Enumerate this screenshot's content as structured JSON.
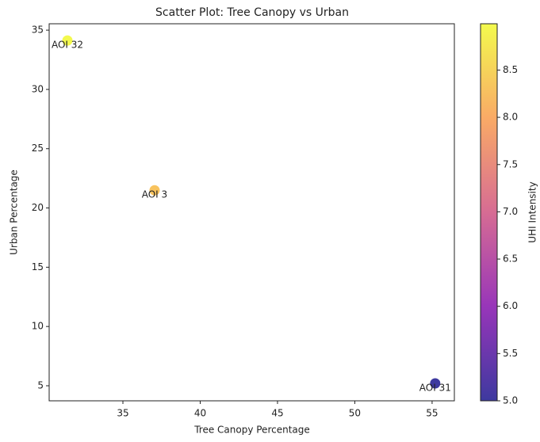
{
  "chart_data": {
    "type": "scatter",
    "title": "Scatter Plot: Tree Canopy vs Urban",
    "xlabel": "Tree Canopy Percentage",
    "ylabel": "Urban Percentage",
    "x": [
      31.41,
      37.05,
      55.2
    ],
    "values": [
      34.13,
      21.49,
      5.2
    ],
    "labels": [
      "AOI 32",
      "AOI 3",
      "AOI 31"
    ],
    "color_values": [
      8.97,
      8.3,
      5.0
    ],
    "colormap": "plasma",
    "alpha": 0.8,
    "xlim": [
      30.23,
      56.44
    ],
    "xticks": [
      35,
      40,
      45,
      50,
      55
    ],
    "ylim": [
      3.73,
      35.54
    ],
    "yticks": [
      5,
      10,
      15,
      20,
      25,
      30,
      35
    ],
    "colorbar_label": "UHI Intensity",
    "clim": [
      5.0,
      8.99
    ],
    "cticks": [
      {
        "value": 5,
        "label": "5.0"
      },
      5.5,
      {
        "value": 6,
        "label": "6.0"
      },
      6.5,
      {
        "value": 7,
        "label": "7.0"
      },
      7.5,
      {
        "value": 8,
        "label": "8.0"
      },
      8.5
    ]
  }
}
